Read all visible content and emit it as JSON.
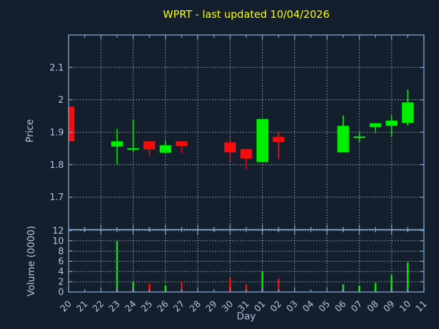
{
  "title": {
    "text": "WPRT - last updated 10/04/2026"
  },
  "axes": {
    "price_label": "Price",
    "volume_label": "Volume (0000)",
    "x_label": "Day"
  },
  "chart_data": {
    "type": "candlestick_with_volume",
    "title": "WPRT - last updated 10/04/2026",
    "xlabel": "Day",
    "ylabel_price": "Price",
    "ylabel_volume": "Volume (0000)",
    "grid": true,
    "price_axis": {
      "ylim": [
        1.6,
        2.2
      ],
      "ticks": [
        1.7,
        1.8,
        1.9,
        2.0,
        2.1
      ],
      "tick_labels": [
        "1.7",
        "1.8",
        "1.9",
        "2",
        "2.1"
      ]
    },
    "volume_axis": {
      "ylim": [
        0,
        12.2
      ],
      "ticks": [
        0,
        2,
        4,
        6,
        8,
        10,
        12
      ],
      "tick_labels": [
        "0",
        "2",
        "4",
        "6",
        "8",
        "10",
        "12"
      ]
    },
    "colors": {
      "up": "#00ee00",
      "down": "#f60c0c",
      "background": "#141f2d",
      "spine": "#84a9ce",
      "grid": "#c8d0d8",
      "tick_label": "#b0c4de",
      "axis_label": "#b0c4de",
      "title": "#ffff00"
    },
    "days": [
      {
        "day": "20",
        "open": 1.979,
        "high": 1.979,
        "low": 1.872,
        "close": 1.872,
        "volume": null
      },
      {
        "day": "21"
      },
      {
        "day": "22"
      },
      {
        "day": "23",
        "open": 1.856,
        "high": 1.91,
        "low": 1.802,
        "close": 1.872,
        "volume": 10.0
      },
      {
        "day": "24",
        "open": 1.846,
        "high": 1.94,
        "low": 1.84,
        "close": 1.851,
        "volume": 2.0
      },
      {
        "day": "25",
        "open": 1.872,
        "high": 1.872,
        "low": 1.828,
        "close": 1.847,
        "volume": 1.6
      },
      {
        "day": "26",
        "open": 1.837,
        "high": 1.874,
        "low": 1.837,
        "close": 1.86,
        "volume": 1.3
      },
      {
        "day": "27",
        "open": 1.872,
        "high": 1.872,
        "low": 1.836,
        "close": 1.858,
        "volume": 2.1
      },
      {
        "day": "28"
      },
      {
        "day": "29"
      },
      {
        "day": "30",
        "open": 1.869,
        "high": 1.882,
        "low": 1.81,
        "close": 1.838,
        "volume": 2.7
      },
      {
        "day": "31",
        "open": 1.848,
        "high": 1.848,
        "low": 1.785,
        "close": 1.819,
        "volume": 1.5
      },
      {
        "day": "01",
        "open": 1.808,
        "high": 1.941,
        "low": 1.808,
        "close": 1.941,
        "volume": 4.1
      },
      {
        "day": "02",
        "open": 1.886,
        "high": 1.901,
        "low": 1.817,
        "close": 1.87,
        "volume": 2.6
      },
      {
        "day": "03"
      },
      {
        "day": "04"
      },
      {
        "day": "05"
      },
      {
        "day": "06",
        "open": 1.838,
        "high": 1.952,
        "low": 1.838,
        "close": 1.92,
        "volume": 1.5
      },
      {
        "day": "07",
        "open": 1.885,
        "high": 1.901,
        "low": 1.87,
        "close": 1.887,
        "volume": 1.2
      },
      {
        "day": "08",
        "open": 1.916,
        "high": 1.928,
        "low": 1.897,
        "close": 1.928,
        "volume": 1.8
      },
      {
        "day": "09",
        "open": 1.92,
        "high": 1.952,
        "low": 1.887,
        "close": 1.936,
        "volume": 3.3
      },
      {
        "day": "10",
        "open": 1.929,
        "high": 2.032,
        "low": 1.921,
        "close": 1.992,
        "volume": 5.8
      },
      {
        "day": "11"
      }
    ]
  }
}
